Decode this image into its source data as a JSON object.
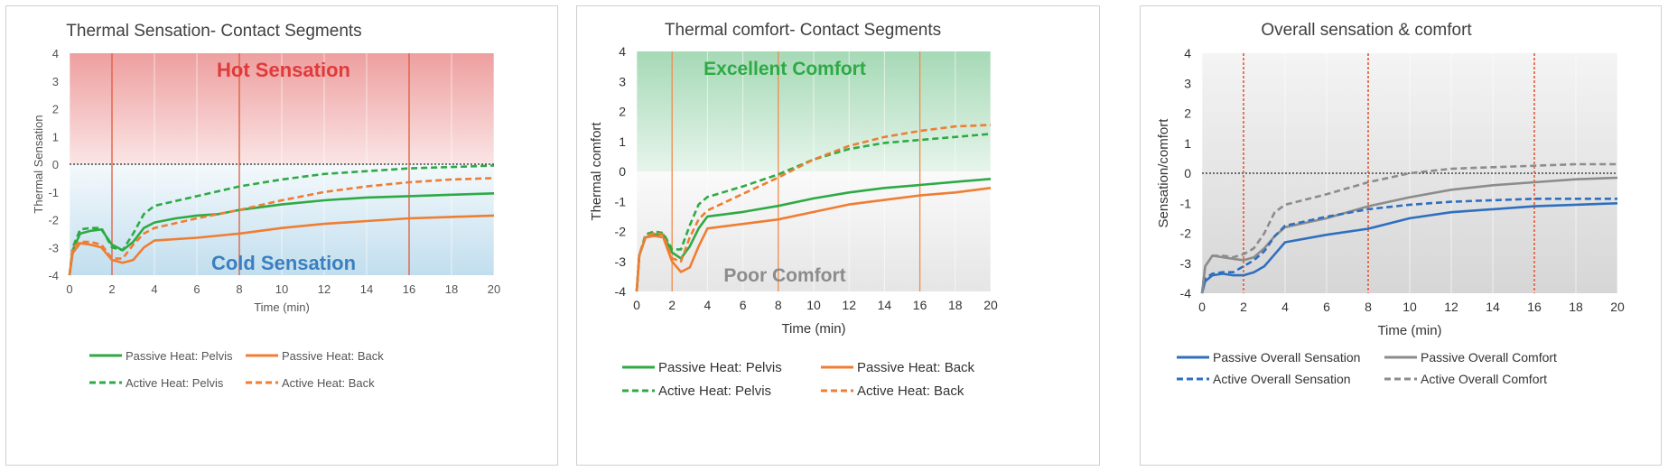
{
  "chart_data": [
    {
      "type": "line",
      "title": "Thermal Sensation- Contact Segments",
      "xlabel": "Time (min)",
      "ylabel": "Thermal Sensation",
      "xlim": [
        0,
        20
      ],
      "ylim": [
        -4,
        4
      ],
      "xticks": [
        "0",
        "2",
        "4",
        "6",
        "8",
        "10",
        "12",
        "14",
        "16",
        "18",
        "20"
      ],
      "yticks": [
        "4",
        "3",
        "2",
        "1",
        "0",
        "-1",
        "-2",
        "-3",
        "-4"
      ],
      "vlines": [
        2,
        8,
        16
      ],
      "zero_line": true,
      "bands": [
        {
          "label": "Hot Sensation",
          "from": 0,
          "to": 4,
          "color": "#e05050"
        },
        {
          "label": "Cold Sensation",
          "from": -4,
          "to": 0,
          "color": "#8fc3e0"
        }
      ],
      "series": [
        {
          "name": "Passive Heat: Pelvis",
          "color": "#2eaa45",
          "dash": false,
          "points": [
            [
              0,
              -4
            ],
            [
              0.15,
              -3.1
            ],
            [
              0.5,
              -2.5
            ],
            [
              1,
              -2.4
            ],
            [
              1.5,
              -2.35
            ],
            [
              2,
              -2.9
            ],
            [
              2.5,
              -3.1
            ],
            [
              3,
              -2.8
            ],
            [
              3.5,
              -2.3
            ],
            [
              4,
              -2.1
            ],
            [
              5,
              -1.95
            ],
            [
              6,
              -1.85
            ],
            [
              7,
              -1.8
            ],
            [
              8,
              -1.65
            ],
            [
              10,
              -1.45
            ],
            [
              12,
              -1.3
            ],
            [
              14,
              -1.2
            ],
            [
              16,
              -1.15
            ],
            [
              18,
              -1.1
            ],
            [
              20,
              -1.05
            ]
          ]
        },
        {
          "name": "Passive Heat: Back",
          "color": "#ef7d32",
          "dash": false,
          "points": [
            [
              0,
              -4
            ],
            [
              0.15,
              -3.2
            ],
            [
              0.5,
              -2.85
            ],
            [
              1,
              -2.9
            ],
            [
              1.5,
              -3.0
            ],
            [
              2,
              -3.45
            ],
            [
              2.5,
              -3.55
            ],
            [
              3,
              -3.45
            ],
            [
              3.5,
              -3.0
            ],
            [
              4,
              -2.75
            ],
            [
              6,
              -2.65
            ],
            [
              8,
              -2.5
            ],
            [
              10,
              -2.3
            ],
            [
              12,
              -2.15
            ],
            [
              14,
              -2.05
            ],
            [
              16,
              -1.95
            ],
            [
              18,
              -1.9
            ],
            [
              20,
              -1.85
            ]
          ]
        },
        {
          "name": "Active Heat: Pelvis",
          "color": "#2eaa45",
          "dash": true,
          "points": [
            [
              0,
              -4
            ],
            [
              0.15,
              -3.0
            ],
            [
              0.5,
              -2.35
            ],
            [
              1,
              -2.3
            ],
            [
              1.5,
              -2.3
            ],
            [
              2,
              -3.0
            ],
            [
              2.5,
              -3.1
            ],
            [
              3,
              -2.5
            ],
            [
              3.5,
              -1.8
            ],
            [
              4,
              -1.5
            ],
            [
              6,
              -1.15
            ],
            [
              8,
              -0.8
            ],
            [
              10,
              -0.55
            ],
            [
              12,
              -0.35
            ],
            [
              14,
              -0.25
            ],
            [
              16,
              -0.15
            ],
            [
              18,
              -0.1
            ],
            [
              20,
              -0.05
            ]
          ]
        },
        {
          "name": "Active Heat: Back",
          "color": "#ef7d32",
          "dash": true,
          "points": [
            [
              0,
              -4
            ],
            [
              0.15,
              -3.0
            ],
            [
              0.5,
              -2.8
            ],
            [
              1,
              -2.8
            ],
            [
              1.5,
              -2.9
            ],
            [
              2,
              -3.4
            ],
            [
              2.5,
              -3.4
            ],
            [
              3,
              -2.9
            ],
            [
              3.5,
              -2.5
            ],
            [
              4,
              -2.3
            ],
            [
              6,
              -1.95
            ],
            [
              8,
              -1.65
            ],
            [
              10,
              -1.3
            ],
            [
              12,
              -1.0
            ],
            [
              14,
              -0.8
            ],
            [
              16,
              -0.65
            ],
            [
              18,
              -0.55
            ],
            [
              20,
              -0.5
            ]
          ]
        }
      ]
    },
    {
      "type": "line",
      "title": "Thermal comfort- Contact Segments",
      "xlabel": "Time (min)",
      "ylabel": "Thermal comfort",
      "xlim": [
        0,
        20
      ],
      "ylim": [
        -4,
        4
      ],
      "xticks": [
        "0",
        "2",
        "4",
        "6",
        "8",
        "10",
        "12",
        "14",
        "16",
        "18",
        "20"
      ],
      "yticks": [
        "4",
        "3",
        "2",
        "1",
        "0",
        "-1",
        "-2",
        "-3",
        "-4"
      ],
      "vlines": [
        2,
        8,
        16
      ],
      "zero_line": false,
      "bands": [
        {
          "label": "Excellent Comfort",
          "from": 0,
          "to": 4,
          "color": "#5cba7a"
        },
        {
          "label": "Poor Comfort",
          "from": -4,
          "to": 0,
          "color": "#d0d0d0"
        }
      ],
      "series": [
        {
          "name": "Passive Heat: Pelvis",
          "color": "#2eaa45",
          "dash": false,
          "points": [
            [
              0,
              -4
            ],
            [
              0.15,
              -2.8
            ],
            [
              0.5,
              -2.2
            ],
            [
              1,
              -2.1
            ],
            [
              1.5,
              -2.1
            ],
            [
              2,
              -2.7
            ],
            [
              2.5,
              -2.9
            ],
            [
              3,
              -2.5
            ],
            [
              3.5,
              -1.9
            ],
            [
              4,
              -1.5
            ],
            [
              6,
              -1.35
            ],
            [
              8,
              -1.15
            ],
            [
              10,
              -0.9
            ],
            [
              12,
              -0.7
            ],
            [
              14,
              -0.55
            ],
            [
              16,
              -0.45
            ],
            [
              18,
              -0.35
            ],
            [
              20,
              -0.25
            ]
          ]
        },
        {
          "name": "Passive Heat: Back",
          "color": "#ef7d32",
          "dash": false,
          "points": [
            [
              0,
              -4
            ],
            [
              0.15,
              -2.8
            ],
            [
              0.5,
              -2.2
            ],
            [
              1,
              -2.15
            ],
            [
              1.5,
              -2.2
            ],
            [
              2,
              -3.0
            ],
            [
              2.5,
              -3.35
            ],
            [
              3,
              -3.2
            ],
            [
              3.5,
              -2.5
            ],
            [
              4,
              -1.9
            ],
            [
              6,
              -1.75
            ],
            [
              8,
              -1.6
            ],
            [
              10,
              -1.35
            ],
            [
              12,
              -1.1
            ],
            [
              14,
              -0.95
            ],
            [
              16,
              -0.8
            ],
            [
              18,
              -0.7
            ],
            [
              20,
              -0.55
            ]
          ]
        },
        {
          "name": "Active Heat: Pelvis",
          "color": "#2eaa45",
          "dash": true,
          "points": [
            [
              0,
              -4
            ],
            [
              0.15,
              -2.8
            ],
            [
              0.5,
              -2.1
            ],
            [
              1,
              -2.0
            ],
            [
              1.5,
              -2.05
            ],
            [
              2,
              -2.6
            ],
            [
              2.5,
              -2.6
            ],
            [
              3,
              -1.8
            ],
            [
              3.5,
              -1.1
            ],
            [
              4,
              -0.85
            ],
            [
              6,
              -0.5
            ],
            [
              8,
              -0.1
            ],
            [
              10,
              0.4
            ],
            [
              12,
              0.75
            ],
            [
              14,
              0.95
            ],
            [
              16,
              1.05
            ],
            [
              18,
              1.15
            ],
            [
              20,
              1.25
            ]
          ]
        },
        {
          "name": "Active Heat: Back",
          "color": "#ef7d32",
          "dash": true,
          "points": [
            [
              0,
              -4
            ],
            [
              0.15,
              -2.8
            ],
            [
              0.5,
              -2.15
            ],
            [
              1,
              -2.05
            ],
            [
              1.5,
              -2.1
            ],
            [
              2,
              -2.9
            ],
            [
              2.5,
              -3.0
            ],
            [
              3,
              -2.2
            ],
            [
              3.5,
              -1.6
            ],
            [
              4,
              -1.3
            ],
            [
              6,
              -0.75
            ],
            [
              8,
              -0.2
            ],
            [
              10,
              0.4
            ],
            [
              12,
              0.85
            ],
            [
              14,
              1.15
            ],
            [
              16,
              1.35
            ],
            [
              18,
              1.5
            ],
            [
              20,
              1.55
            ]
          ]
        }
      ]
    },
    {
      "type": "line",
      "title": "Overall sensation & comfort",
      "xlabel": "Time (min)",
      "ylabel": "Sensation/comfort",
      "xlim": [
        0,
        20
      ],
      "ylim": [
        -4,
        4
      ],
      "xticks": [
        "0",
        "2",
        "4",
        "6",
        "8",
        "10",
        "12",
        "14",
        "16",
        "18",
        "20"
      ],
      "yticks": [
        "4",
        "3",
        "2",
        "1",
        "0",
        "-1",
        "-2",
        "-3",
        "-4"
      ],
      "vlines": [
        2,
        8,
        16
      ],
      "zero_line": true,
      "bands": [],
      "series": [
        {
          "name": "Passive Overall Sensation",
          "color": "#2f6fbf",
          "dash": false,
          "points": [
            [
              0,
              -4
            ],
            [
              0.15,
              -3.6
            ],
            [
              0.5,
              -3.4
            ],
            [
              1,
              -3.35
            ],
            [
              1.5,
              -3.4
            ],
            [
              2,
              -3.4
            ],
            [
              2.5,
              -3.3
            ],
            [
              3,
              -3.1
            ],
            [
              3.5,
              -2.7
            ],
            [
              4,
              -2.3
            ],
            [
              6,
              -2.05
            ],
            [
              8,
              -1.85
            ],
            [
              10,
              -1.5
            ],
            [
              12,
              -1.3
            ],
            [
              14,
              -1.2
            ],
            [
              16,
              -1.1
            ],
            [
              18,
              -1.05
            ],
            [
              20,
              -1.0
            ]
          ]
        },
        {
          "name": "Passive Overall Comfort",
          "color": "#8c8c8c",
          "dash": false,
          "points": [
            [
              0,
              -4
            ],
            [
              0.15,
              -3.1
            ],
            [
              0.5,
              -2.75
            ],
            [
              1,
              -2.8
            ],
            [
              1.5,
              -2.85
            ],
            [
              2,
              -2.9
            ],
            [
              2.5,
              -2.8
            ],
            [
              3,
              -2.5
            ],
            [
              3.5,
              -2.1
            ],
            [
              4,
              -1.8
            ],
            [
              6,
              -1.5
            ],
            [
              8,
              -1.1
            ],
            [
              10,
              -0.8
            ],
            [
              12,
              -0.55
            ],
            [
              14,
              -0.4
            ],
            [
              16,
              -0.3
            ],
            [
              18,
              -0.2
            ],
            [
              20,
              -0.15
            ]
          ]
        },
        {
          "name": "Active Overall Sensation",
          "color": "#2f6fbf",
          "dash": true,
          "points": [
            [
              0,
              -4
            ],
            [
              0.15,
              -3.5
            ],
            [
              0.5,
              -3.35
            ],
            [
              1,
              -3.3
            ],
            [
              1.5,
              -3.3
            ],
            [
              2,
              -3.1
            ],
            [
              2.5,
              -2.9
            ],
            [
              3,
              -2.6
            ],
            [
              3.5,
              -2.1
            ],
            [
              4,
              -1.75
            ],
            [
              6,
              -1.45
            ],
            [
              8,
              -1.2
            ],
            [
              10,
              -1.05
            ],
            [
              12,
              -0.95
            ],
            [
              14,
              -0.9
            ],
            [
              16,
              -0.85
            ],
            [
              18,
              -0.85
            ],
            [
              20,
              -0.85
            ]
          ]
        },
        {
          "name": "Active Overall Comfort",
          "color": "#8c8c8c",
          "dash": true,
          "points": [
            [
              0,
              -4
            ],
            [
              0.15,
              -3.1
            ],
            [
              0.5,
              -2.75
            ],
            [
              1,
              -2.75
            ],
            [
              1.5,
              -2.8
            ],
            [
              2,
              -2.7
            ],
            [
              2.5,
              -2.5
            ],
            [
              3,
              -2.0
            ],
            [
              3.5,
              -1.3
            ],
            [
              4,
              -1.05
            ],
            [
              6,
              -0.7
            ],
            [
              8,
              -0.3
            ],
            [
              10,
              0.0
            ],
            [
              12,
              0.15
            ],
            [
              14,
              0.2
            ],
            [
              16,
              0.25
            ],
            [
              18,
              0.3
            ],
            [
              20,
              0.3
            ]
          ]
        }
      ]
    }
  ]
}
